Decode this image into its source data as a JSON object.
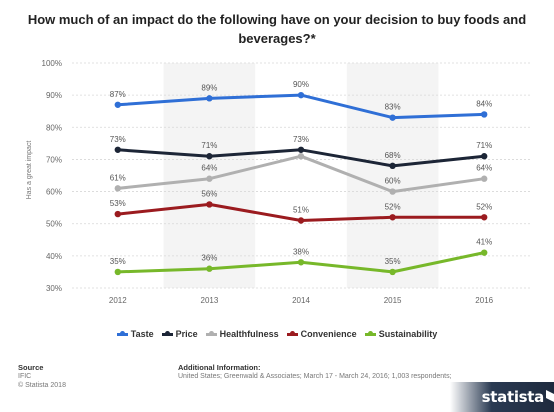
{
  "title": "How much of an impact do the following have on your decision to buy foods and beverages?*",
  "chart_data": {
    "type": "line",
    "title": "How much of an impact do the following have on your decision to buy foods and beverages?*",
    "ylabel": "Has a great impact",
    "xlabel": "",
    "x": [
      "2012",
      "2013",
      "2014",
      "2015",
      "2016"
    ],
    "ylim": [
      30,
      100
    ],
    "y_ticks": [
      "30%",
      "40%",
      "50%",
      "60%",
      "70%",
      "80%",
      "90%",
      "100%"
    ],
    "grid": true,
    "legend_position": "bottom",
    "series": [
      {
        "name": "Taste",
        "color": "#2f6fd6",
        "values": [
          87,
          89,
          90,
          83,
          84
        ],
        "labels": [
          "87%",
          "89%",
          "90%",
          "83%",
          "84%"
        ]
      },
      {
        "name": "Price",
        "color": "#1c2536",
        "values": [
          73,
          71,
          73,
          68,
          71
        ],
        "labels": [
          "73%",
          "71%",
          "73%",
          "68%",
          "71%"
        ]
      },
      {
        "name": "Healthfulness",
        "color": "#b0b0b0",
        "values": [
          61,
          64,
          71,
          60,
          64
        ],
        "labels": [
          "61%",
          "64%",
          "",
          "60%",
          "64%"
        ]
      },
      {
        "name": "Convenience",
        "color": "#9b1b1f",
        "values": [
          53,
          56,
          51,
          52,
          52
        ],
        "labels": [
          "53%",
          "56%",
          "51%",
          "52%",
          "52%"
        ]
      },
      {
        "name": "Sustainability",
        "color": "#77b82a",
        "values": [
          35,
          36,
          38,
          35,
          41
        ],
        "labels": [
          "35%",
          "36%",
          "38%",
          "35%",
          "41%"
        ]
      }
    ]
  },
  "footer": {
    "source_heading": "Source",
    "source_name": "IFIC",
    "copyright": "© Statista 2018",
    "additional_heading": "Additional Information:",
    "additional_text": "United States; Greenwald & Associates; March 17 - March 24, 2016; 1,003 respondents;"
  },
  "brand": "statista"
}
